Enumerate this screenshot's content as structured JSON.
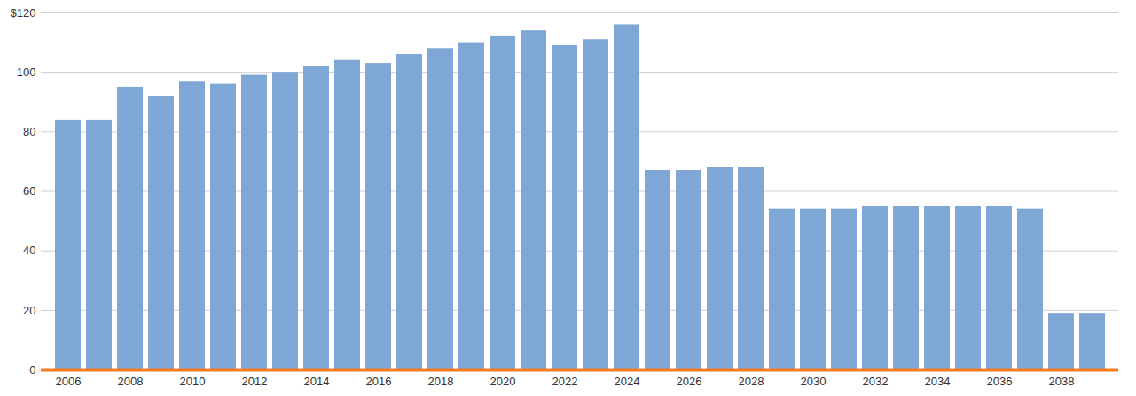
{
  "chart_data": {
    "type": "bar",
    "categories": [
      "2006",
      null,
      "2008",
      null,
      "2010",
      null,
      "2012",
      null,
      "2014",
      null,
      "2016",
      null,
      "2018",
      null,
      "2020",
      null,
      "2022",
      null,
      "2024",
      null,
      "2026",
      null,
      "2028",
      null,
      "2030",
      null,
      "2032",
      null,
      "2034",
      null,
      "2036",
      null,
      "2038",
      null
    ],
    "values": [
      84,
      84,
      95,
      92,
      97,
      96,
      99,
      100,
      102,
      104,
      103,
      106,
      108,
      110,
      112,
      114,
      109,
      111,
      116,
      67,
      67,
      68,
      68,
      54,
      54,
      54,
      55,
      55,
      55,
      55,
      55,
      54,
      19,
      19
    ],
    "color": "#7fa7d6",
    "ylim": [
      0,
      120
    ],
    "yticks": [
      0,
      20,
      40,
      60,
      80,
      100,
      {
        "value": 120,
        "label": "$120"
      }
    ],
    "grid": true
  }
}
